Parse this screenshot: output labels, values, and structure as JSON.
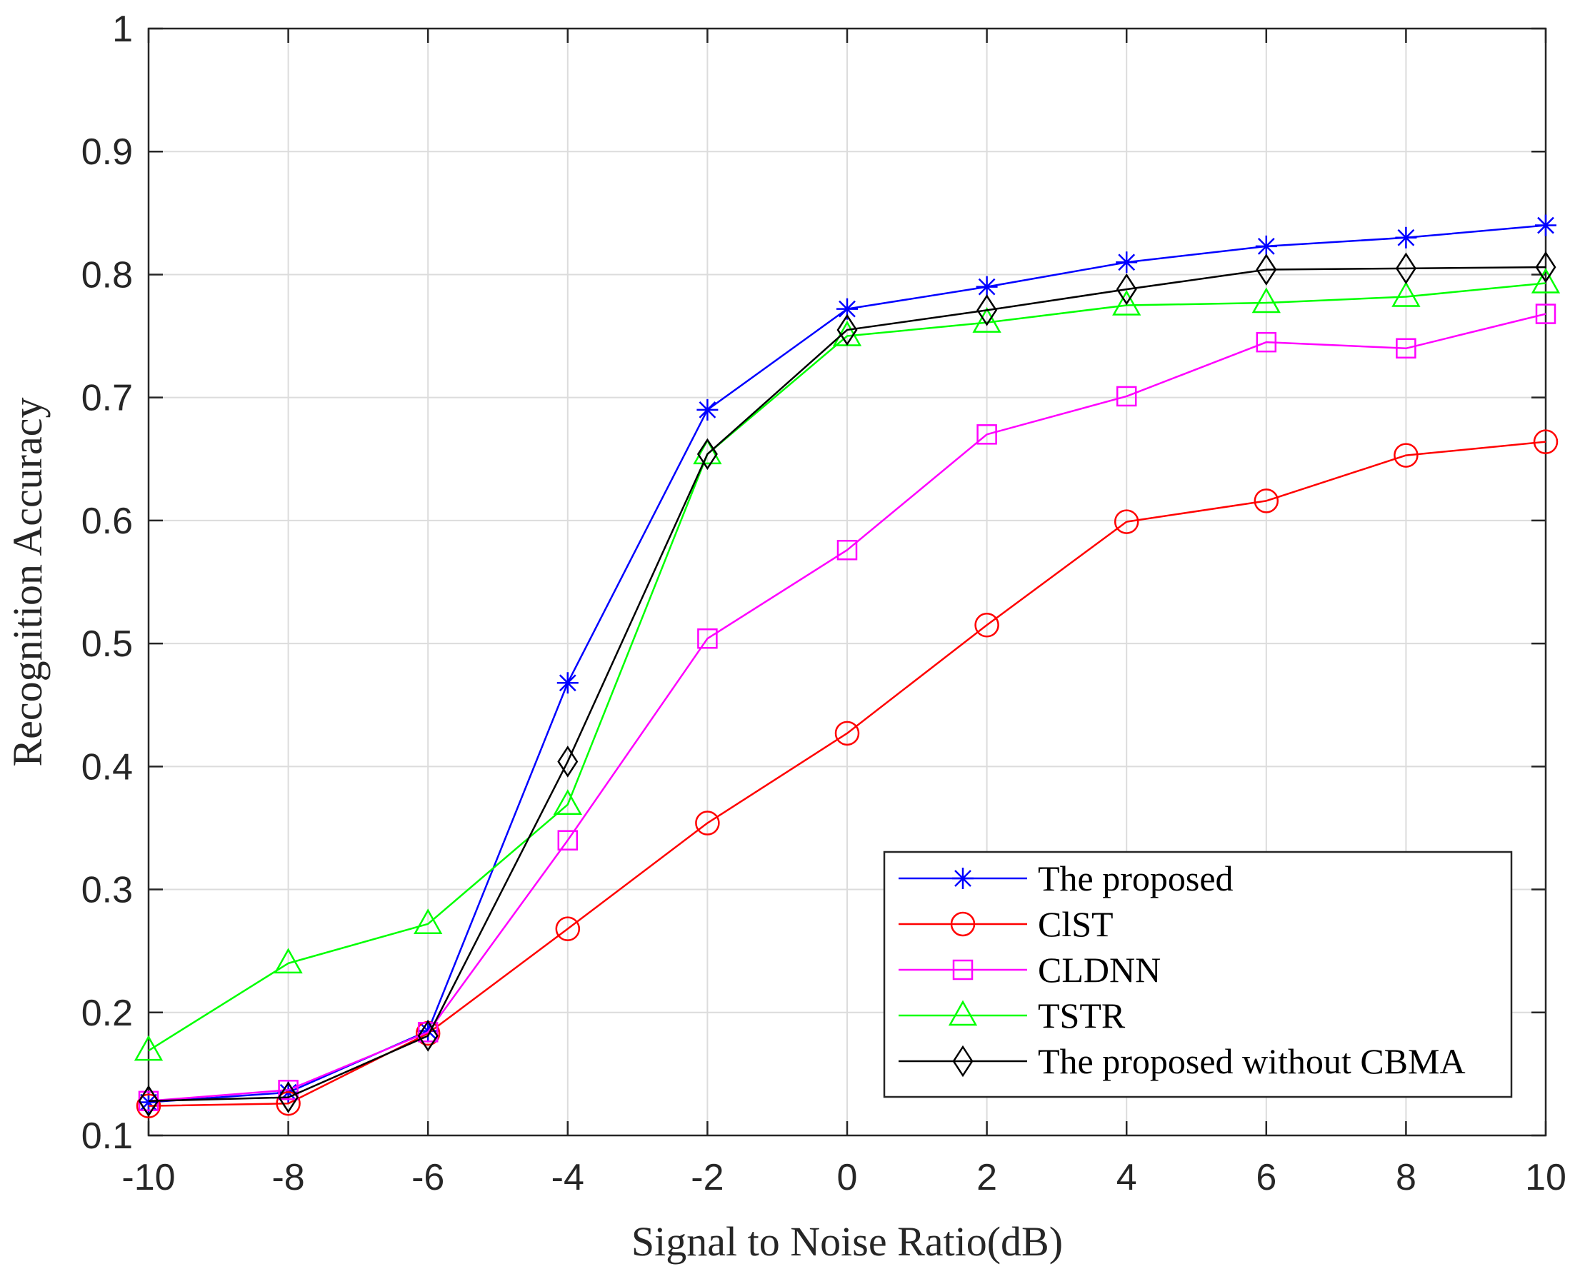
{
  "chart_data": {
    "type": "line",
    "title": "",
    "xlabel": "Signal to Noise Ratio(dB)",
    "ylabel": "Recognition Accuracy",
    "x": [
      -10,
      -8,
      -6,
      -4,
      -2,
      0,
      2,
      4,
      6,
      8,
      10
    ],
    "xlim": [
      -10,
      10
    ],
    "ylim": [
      0.1,
      1
    ],
    "xticks": [
      "-10",
      "-8",
      "-6",
      "-4",
      "-2",
      "0",
      "2",
      "4",
      "6",
      "8",
      "10"
    ],
    "yticks": [
      "0.1",
      "0.2",
      "0.3",
      "0.4",
      "0.5",
      "0.6",
      "0.7",
      "0.8",
      "0.9",
      "1"
    ],
    "grid": true,
    "legend_position": "bottom-right",
    "series": [
      {
        "name": "The proposed",
        "color": "#0000ff",
        "marker": "asterisk",
        "values": [
          0.127,
          0.135,
          0.185,
          0.468,
          0.69,
          0.772,
          0.79,
          0.81,
          0.823,
          0.83,
          0.84
        ]
      },
      {
        "name": "ClST",
        "color": "#ff0000",
        "marker": "circle",
        "values": [
          0.124,
          0.126,
          0.183,
          0.268,
          0.354,
          0.427,
          0.515,
          0.599,
          0.616,
          0.653,
          0.664
        ]
      },
      {
        "name": "CLDNN",
        "color": "#ff00ff",
        "marker": "square",
        "values": [
          0.128,
          0.137,
          0.184,
          0.34,
          0.504,
          0.576,
          0.67,
          0.701,
          0.745,
          0.74,
          0.768
        ]
      },
      {
        "name": "TSTR",
        "color": "#00ff00",
        "marker": "triangle",
        "values": [
          0.169,
          0.24,
          0.272,
          0.369,
          0.654,
          0.75,
          0.761,
          0.775,
          0.777,
          0.782,
          0.793
        ]
      },
      {
        "name": "The proposed without CBMA",
        "color": "#000000",
        "marker": "diamond",
        "values": [
          0.128,
          0.131,
          0.181,
          0.404,
          0.654,
          0.755,
          0.771,
          0.788,
          0.804,
          0.805,
          0.806
        ]
      }
    ]
  }
}
